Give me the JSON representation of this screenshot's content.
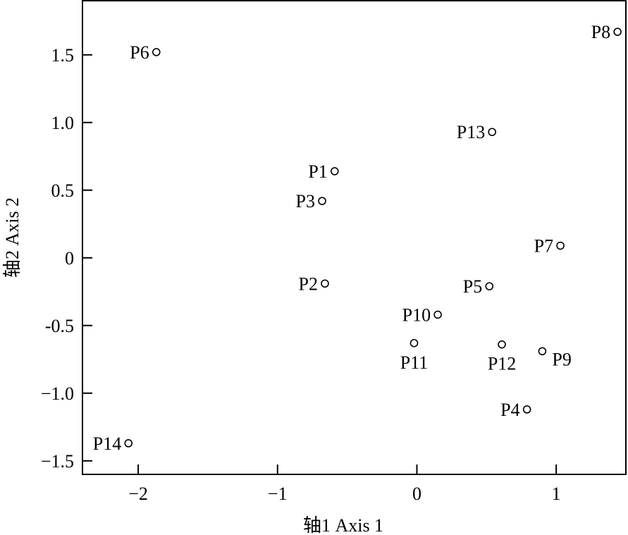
{
  "chart_data": {
    "type": "scatter",
    "title": "",
    "xlabel": "轴1 Axis 1",
    "ylabel": "轴2 Axis 2",
    "xlim": [
      -2.4,
      1.5
    ],
    "ylim": [
      -1.6,
      1.9
    ],
    "grid": false,
    "xticks": [
      {
        "value": -2,
        "label": "−2"
      },
      {
        "value": -1,
        "label": "−1"
      },
      {
        "value": 0,
        "label": "0"
      },
      {
        "value": 1,
        "label": "1"
      }
    ],
    "yticks": [
      {
        "value": 1.5,
        "label": "1.5"
      },
      {
        "value": 1.0,
        "label": "1.0"
      },
      {
        "value": 0.5,
        "label": "0.5"
      },
      {
        "value": 0,
        "label": "0"
      },
      {
        "value": -0.5,
        "label": "-0.5"
      },
      {
        "value": -1.0,
        "label": "−1.0"
      },
      {
        "value": -1.5,
        "label": "−1.5"
      }
    ],
    "points": [
      {
        "label": "P1",
        "x": -0.59,
        "y": 0.64,
        "label_pos": "left"
      },
      {
        "label": "P2",
        "x": -0.66,
        "y": -0.19,
        "label_pos": "left"
      },
      {
        "label": "P3",
        "x": -0.68,
        "y": 0.42,
        "label_pos": "left"
      },
      {
        "label": "P4",
        "x": 0.79,
        "y": -1.12,
        "label_pos": "left"
      },
      {
        "label": "P5",
        "x": 0.52,
        "y": -0.21,
        "label_pos": "left"
      },
      {
        "label": "P6",
        "x": -1.87,
        "y": 1.52,
        "label_pos": "left"
      },
      {
        "label": "P7",
        "x": 1.03,
        "y": 0.09,
        "label_pos": "left"
      },
      {
        "label": "P8",
        "x": 1.44,
        "y": 1.67,
        "label_pos": "left"
      },
      {
        "label": "P9",
        "x": 0.9,
        "y": -0.69,
        "label_pos": "below-right"
      },
      {
        "label": "P10",
        "x": 0.15,
        "y": -0.42,
        "label_pos": "left"
      },
      {
        "label": "P11",
        "x": -0.02,
        "y": -0.63,
        "label_pos": "below"
      },
      {
        "label": "P12",
        "x": 0.61,
        "y": -0.64,
        "label_pos": "below"
      },
      {
        "label": "P13",
        "x": 0.54,
        "y": 0.93,
        "label_pos": "left"
      },
      {
        "label": "P14",
        "x": -2.07,
        "y": -1.37,
        "label_pos": "left"
      }
    ]
  }
}
